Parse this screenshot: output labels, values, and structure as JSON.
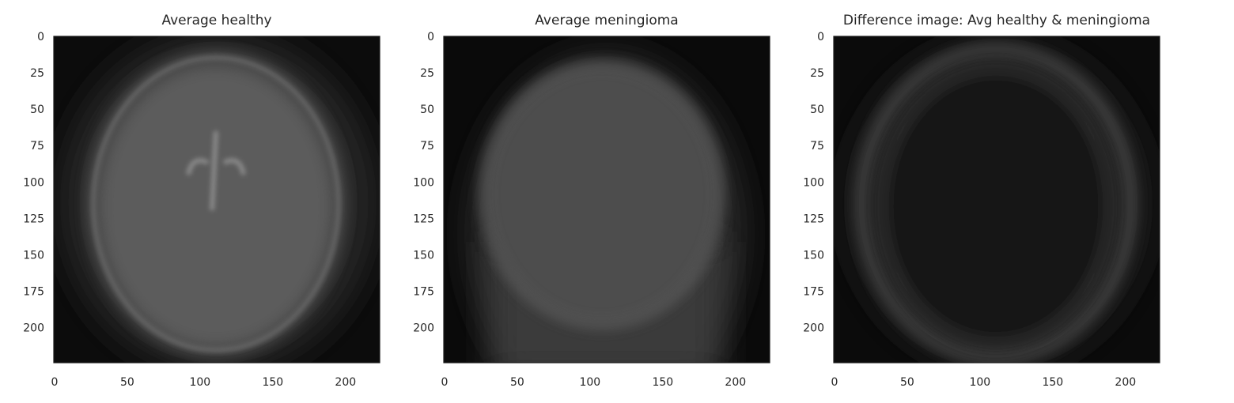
{
  "chart_data": [
    {
      "type": "image",
      "title": "Average healthy",
      "xlim": [
        -0.5,
        223.5
      ],
      "ylim": [
        223.5,
        -0.5
      ],
      "xticks": [
        0,
        50,
        100,
        150,
        200
      ],
      "yticks": [
        0,
        25,
        50,
        75,
        100,
        125,
        150,
        175,
        200
      ]
    },
    {
      "type": "image",
      "title": "Average meningioma",
      "xlim": [
        -0.5,
        223.5
      ],
      "ylim": [
        223.5,
        -0.5
      ],
      "xticks": [
        0,
        50,
        100,
        150,
        200
      ],
      "yticks": [
        0,
        25,
        50,
        75,
        100,
        125,
        150,
        175,
        200
      ]
    },
    {
      "type": "image",
      "title": "Difference image: Avg healthy & meningioma",
      "xlim": [
        -0.5,
        223.5
      ],
      "ylim": [
        223.5,
        -0.5
      ],
      "xticks": [
        0,
        50,
        100,
        150,
        200
      ],
      "yticks": [
        0,
        25,
        50,
        75,
        100,
        125,
        150,
        175,
        200
      ]
    }
  ]
}
